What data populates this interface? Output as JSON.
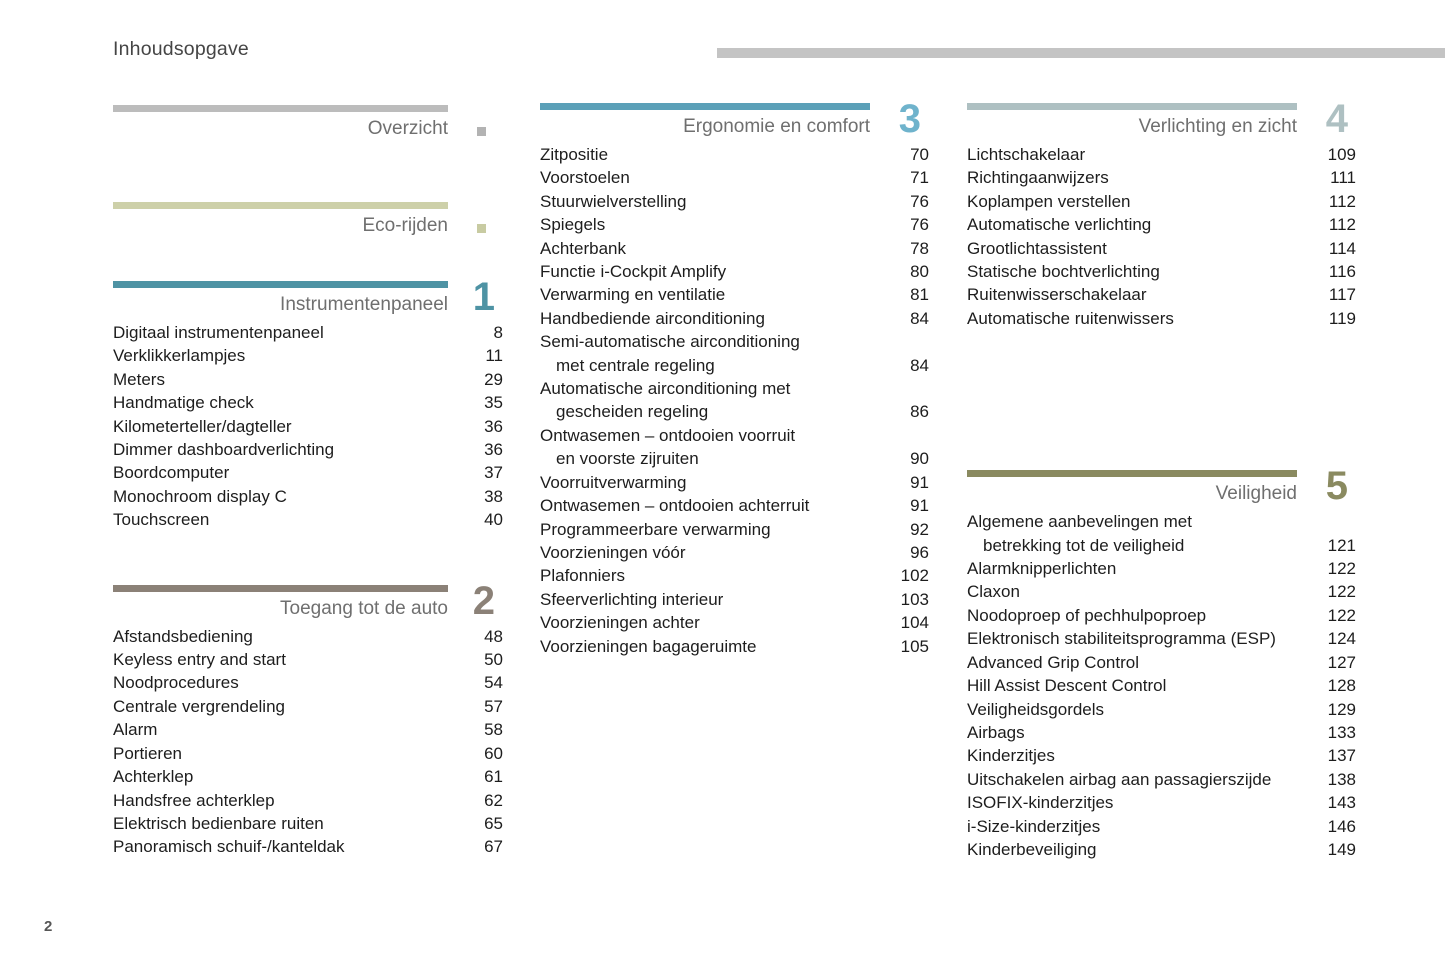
{
  "header": {
    "title": "Inhoudsopgave"
  },
  "footer": {
    "page_number": "2"
  },
  "colors": {
    "header_rule": "#c4c4c4",
    "overview_bar": "#bcbcbc",
    "eco_bar": "#cdd0a9",
    "section1": "#4e93a4",
    "section2": "#8b8177",
    "section3_bar": "#5ba0b8",
    "section3_number": "#6fb3cc",
    "section4": "#aec0c2",
    "section5": "#8a8a60",
    "item_text": "#1d1d1d",
    "section_title_text": "#6f6f6f"
  },
  "columns": [
    {
      "sections": [
        {
          "title": "Overzicht",
          "bar_color": "#bcbcbc",
          "marker_color": "#b3b3b3",
          "items": []
        },
        {
          "title": "Eco-rijden",
          "bar_color": "#cdd0a9",
          "marker_color": "#c8cba2",
          "items": []
        },
        {
          "title": "Instrumentenpaneel",
          "number": "1",
          "bar_color": "#4e93a4",
          "number_color": "#4e93a4",
          "items": [
            {
              "label": "Digitaal instrumentenpaneel",
              "page": "8"
            },
            {
              "label": "Verklikkerlampjes",
              "page": "11"
            },
            {
              "label": "Meters",
              "page": "29"
            },
            {
              "label": "Handmatige check",
              "page": "35"
            },
            {
              "label": "Kilometerteller/dagteller",
              "page": "36"
            },
            {
              "label": "Dimmer dashboardverlichting",
              "page": "36"
            },
            {
              "label": "Boordcomputer",
              "page": "37"
            },
            {
              "label": "Monochroom display C",
              "page": "38"
            },
            {
              "label": "Touchscreen",
              "page": "40"
            }
          ]
        },
        {
          "title": "Toegang tot de auto",
          "number": "2",
          "bar_color": "#8b8177",
          "number_color": "#8b8177",
          "items": [
            {
              "label": "Afstandsbediening",
              "page": "48"
            },
            {
              "label": "Keyless entry and start",
              "page": "50"
            },
            {
              "label": "Noodprocedures",
              "page": "54"
            },
            {
              "label": "Centrale vergrendeling",
              "page": "57"
            },
            {
              "label": "Alarm",
              "page": "58"
            },
            {
              "label": "Portieren",
              "page": "60"
            },
            {
              "label": "Achterklep",
              "page": "61"
            },
            {
              "label": "Handsfree achterklep",
              "page": "62"
            },
            {
              "label": "Elektrisch bedienbare ruiten",
              "page": "65"
            },
            {
              "label": "Panoramisch schuif-/kanteldak",
              "page": "67"
            }
          ]
        }
      ]
    },
    {
      "sections": [
        {
          "title": "Ergonomie en comfort",
          "number": "3",
          "bar_color": "#5ba0b8",
          "number_color": "#6fb3cc",
          "items": [
            {
              "label": "Zitpositie",
              "page": "70"
            },
            {
              "label": "Voorstoelen",
              "page": "71"
            },
            {
              "label": "Stuurwielverstelling",
              "page": "76"
            },
            {
              "label": "Spiegels",
              "page": "76"
            },
            {
              "label": "Achterbank",
              "page": "78"
            },
            {
              "label": "Functie i-Cockpit Amplify",
              "page": "80"
            },
            {
              "label": "Verwarming en ventilatie",
              "page": "81"
            },
            {
              "label": "Handbediende airconditioning",
              "page": "84"
            },
            {
              "label": "Semi-automatische airconditioning",
              "label2": "met centrale regeling",
              "page": "84"
            },
            {
              "label": "Automatische airconditioning met",
              "label2": "gescheiden regeling",
              "page": "86"
            },
            {
              "label": "Ontwasemen – ontdooien voorruit",
              "label2": "en voorste zijruiten",
              "page": "90"
            },
            {
              "label": "Voorruitverwarming",
              "page": "91"
            },
            {
              "label": "Ontwasemen – ontdooien achterruit",
              "page": "91"
            },
            {
              "label": "Programmeerbare verwarming",
              "page": "92"
            },
            {
              "label": "Voorzieningen vóór",
              "page": "96"
            },
            {
              "label": "Plafonniers",
              "page": "102"
            },
            {
              "label": "Sfeerverlichting interieur",
              "page": "103"
            },
            {
              "label": "Voorzieningen achter",
              "page": "104"
            },
            {
              "label": "Voorzieningen bagageruimte",
              "page": "105"
            }
          ]
        }
      ]
    },
    {
      "sections": [
        {
          "title": "Verlichting en zicht",
          "number": "4",
          "bar_color": "#aec0c2",
          "number_color": "#aec0c2",
          "items": [
            {
              "label": "Lichtschakelaar",
              "page": "109"
            },
            {
              "label": "Richtingaanwijzers",
              "page": "111"
            },
            {
              "label": "Koplampen verstellen",
              "page": "112"
            },
            {
              "label": "Automatische verlichting",
              "page": "112"
            },
            {
              "label": "Grootlichtassistent",
              "page": "114"
            },
            {
              "label": "Statische bochtverlichting",
              "page": "116"
            },
            {
              "label": "Ruitenwisserschakelaar",
              "page": "117"
            },
            {
              "label": "Automatische ruitenwissers",
              "page": "119"
            }
          ]
        },
        {
          "title": "Veiligheid",
          "number": "5",
          "bar_color": "#8a8a60",
          "number_color": "#8a8a60",
          "items": [
            {
              "label": "Algemene aanbevelingen met",
              "label2": "betrekking tot de veiligheid",
              "page": "121"
            },
            {
              "label": "Alarmknipperlichten",
              "page": "122"
            },
            {
              "label": "Claxon",
              "page": "122"
            },
            {
              "label": "Noodoproep of pechhulpoproep",
              "page": "122"
            },
            {
              "label": "Elektronisch stabiliteitsprogramma (ESP)",
              "page": "124"
            },
            {
              "label": "Advanced Grip Control",
              "page": "127"
            },
            {
              "label": "Hill Assist Descent Control",
              "page": "128"
            },
            {
              "label": "Veiligheidsgordels",
              "page": "129"
            },
            {
              "label": "Airbags",
              "page": "133"
            },
            {
              "label": "Kinderzitjes",
              "page": "137"
            },
            {
              "label": "Uitschakelen airbag aan passagierszijde",
              "page": "138"
            },
            {
              "label": "ISOFIX-kinderzitjes",
              "page": "143"
            },
            {
              "label": "i-Size-kinderzitjes",
              "page": "146"
            },
            {
              "label": "Kinderbeveiliging",
              "page": "149"
            }
          ]
        }
      ]
    }
  ]
}
